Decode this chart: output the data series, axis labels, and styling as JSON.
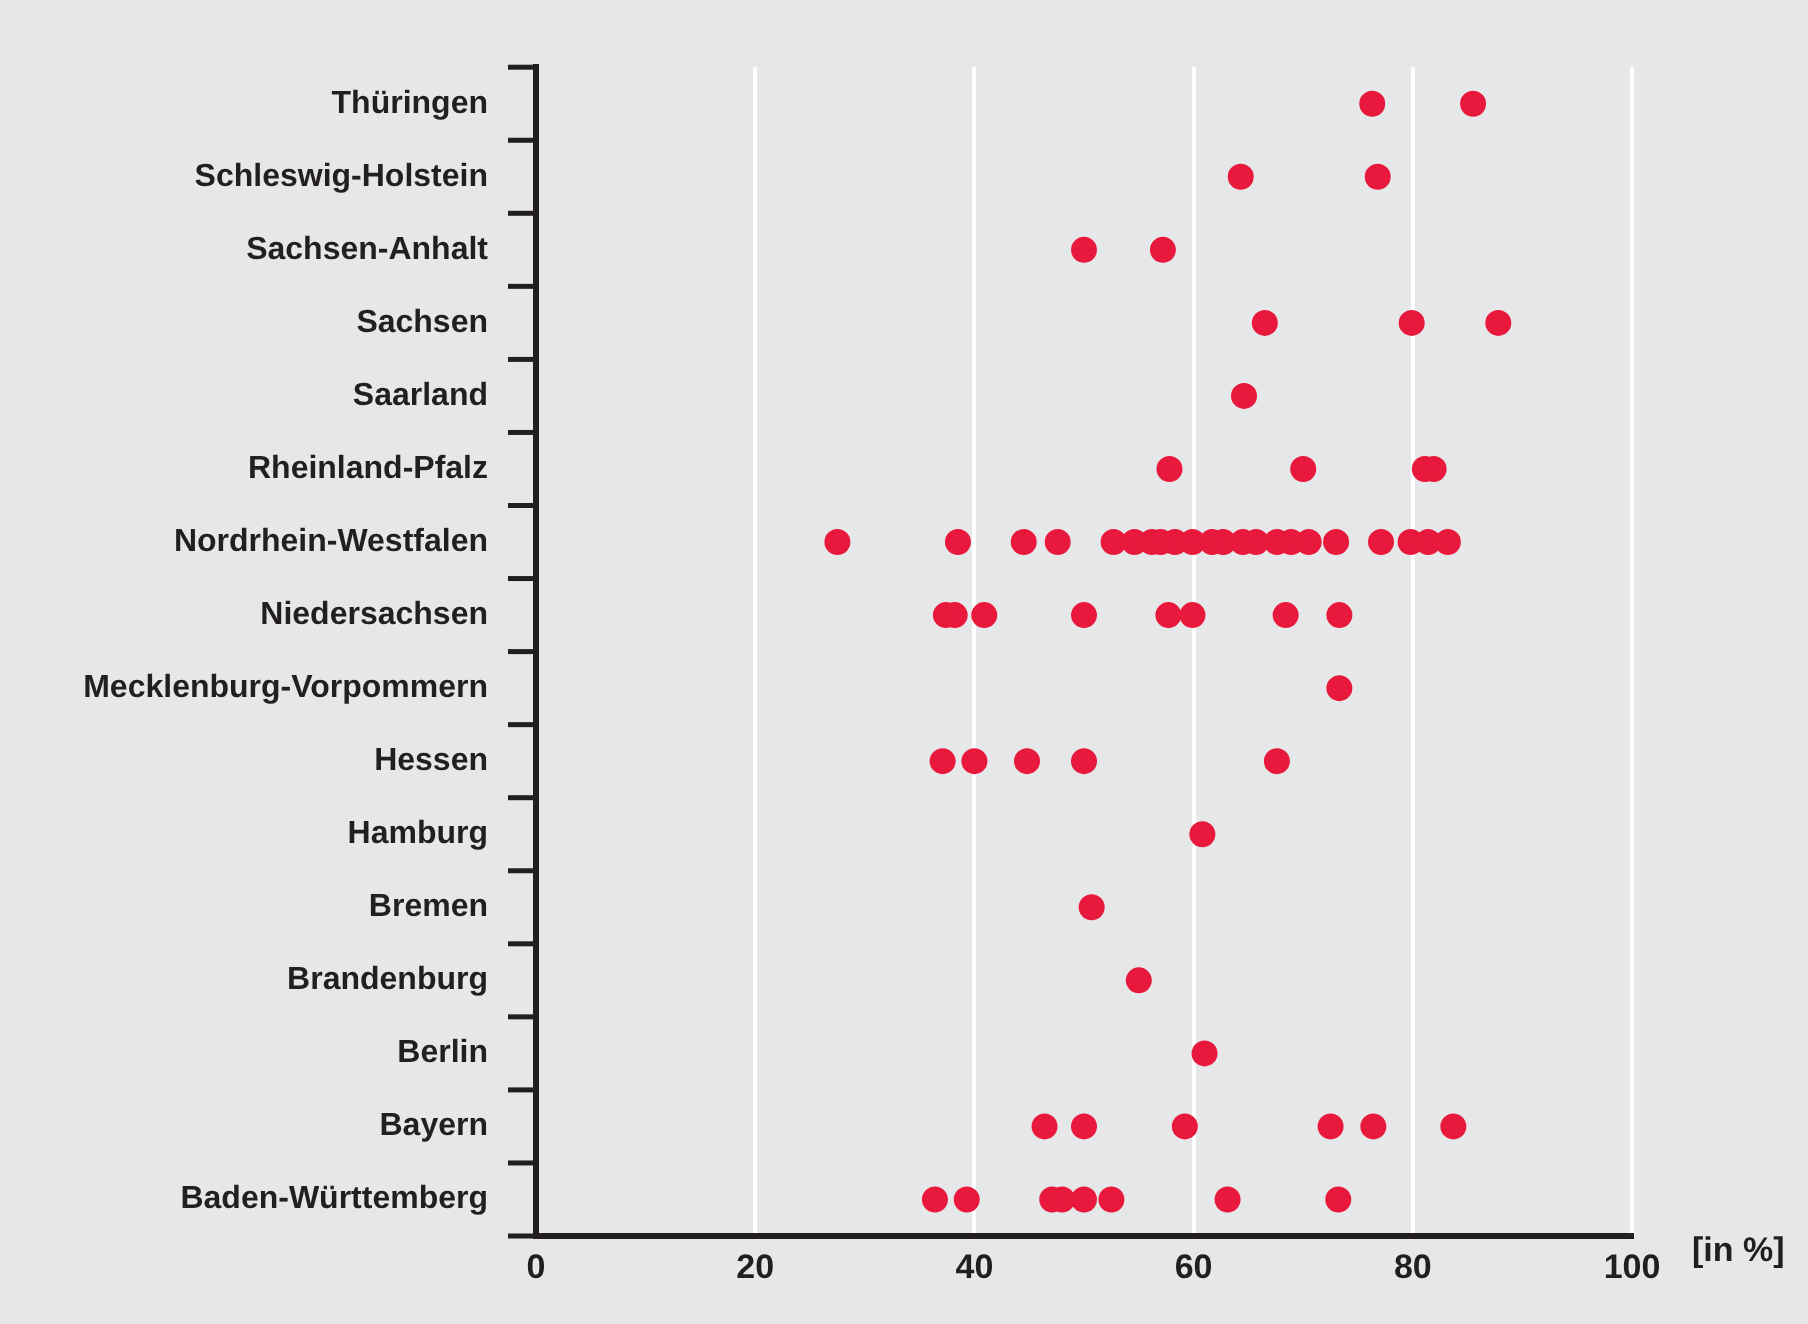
{
  "chart_data": {
    "type": "scatter",
    "orientation": "horizontal",
    "xlabel": "[in %]",
    "categories": [
      "Thüringen",
      "Schleswig-Holstein",
      "Sachsen-Anhalt",
      "Sachsen",
      "Saarland",
      "Rheinland-Pfalz",
      "Nordrhein-Westfalen",
      "Niedersachsen",
      "Mecklenburg-Vorpommern",
      "Hessen",
      "Hamburg",
      "Bremen",
      "Brandenburg",
      "Berlin",
      "Bayern",
      "Baden-Württemberg"
    ],
    "series": [
      {
        "color": "#e8193c",
        "x": [
          "Thüringen",
          "Thüringen",
          "Schleswig-Holstein",
          "Schleswig-Holstein",
          "Sachsen-Anhalt",
          "Sachsen-Anhalt",
          "Sachsen",
          "Sachsen",
          "Sachsen",
          "Saarland",
          "Rheinland-Pfalz",
          "Rheinland-Pfalz",
          "Rheinland-Pfalz",
          "Rheinland-Pfalz",
          "Nordrhein-Westfalen",
          "Nordrhein-Westfalen",
          "Nordrhein-Westfalen",
          "Nordrhein-Westfalen",
          "Nordrhein-Westfalen",
          "Nordrhein-Westfalen",
          "Nordrhein-Westfalen",
          "Nordrhein-Westfalen",
          "Nordrhein-Westfalen",
          "Nordrhein-Westfalen",
          "Nordrhein-Westfalen",
          "Nordrhein-Westfalen",
          "Nordrhein-Westfalen",
          "Nordrhein-Westfalen",
          "Nordrhein-Westfalen",
          "Nordrhein-Westfalen",
          "Nordrhein-Westfalen",
          "Nordrhein-Westfalen",
          "Nordrhein-Westfalen",
          "Nordrhein-Westfalen",
          "Nordrhein-Westfalen",
          "Nordrhein-Westfalen",
          "Niedersachsen",
          "Niedersachsen",
          "Niedersachsen",
          "Niedersachsen",
          "Niedersachsen",
          "Niedersachsen",
          "Niedersachsen",
          "Niedersachsen",
          "Mecklenburg-Vorpommern",
          "Hessen",
          "Hessen",
          "Hessen",
          "Hessen",
          "Hessen",
          "Hamburg",
          "Bremen",
          "Brandenburg",
          "Berlin",
          "Bayern",
          "Bayern",
          "Bayern",
          "Bayern",
          "Bayern",
          "Bayern",
          "Baden-Württemberg",
          "Baden-Württemberg",
          "Baden-Württemberg",
          "Baden-Württemberg",
          "Baden-Württemberg",
          "Baden-Württemberg",
          "Baden-Württemberg",
          "Baden-Württemberg"
        ],
        "values": [
          76.3,
          85.5,
          64.3,
          76.8,
          50.0,
          57.2,
          66.5,
          79.9,
          87.8,
          64.6,
          57.8,
          70.0,
          81.1,
          81.9,
          27.5,
          38.5,
          44.5,
          47.6,
          52.7,
          54.6,
          56.2,
          57.0,
          58.3,
          59.9,
          61.7,
          62.7,
          64.5,
          65.7,
          67.6,
          68.9,
          70.5,
          73.0,
          77.1,
          79.8,
          81.4,
          83.2,
          37.4,
          38.2,
          40.9,
          50.0,
          57.7,
          59.9,
          68.4,
          73.3,
          73.3,
          37.1,
          40.0,
          44.8,
          50.0,
          67.6,
          60.8,
          50.7,
          55.0,
          61.0,
          46.4,
          50.0,
          59.2,
          72.5,
          76.4,
          83.7,
          36.4,
          39.3,
          47.1,
          48.0,
          50.0,
          52.5,
          63.1,
          73.2
        ]
      }
    ],
    "xlim": [
      0,
      100
    ],
    "xticks": [
      0,
      20,
      40,
      60,
      80,
      100
    ],
    "grid": "x",
    "legend": false,
    "marker": "circle"
  }
}
